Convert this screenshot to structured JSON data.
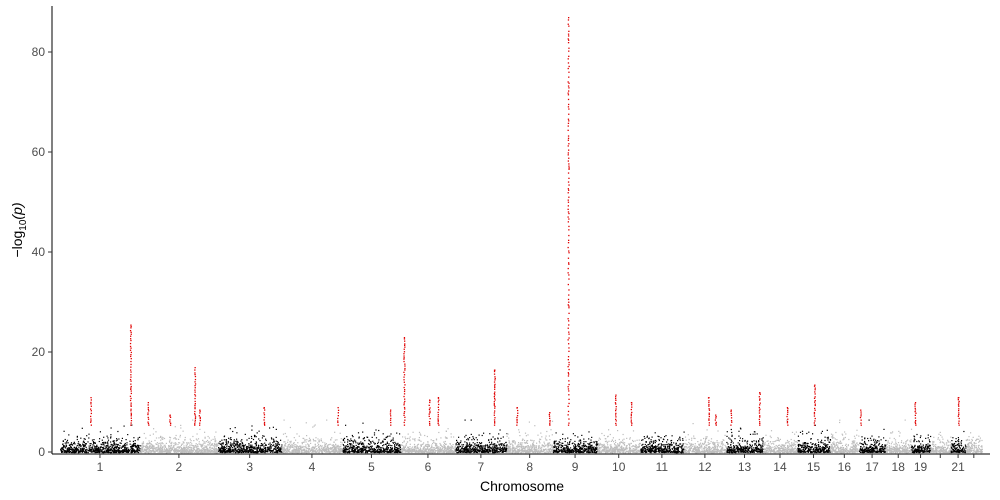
{
  "chart_data": {
    "type": "scatter",
    "subtype": "manhattan",
    "title": "",
    "xlabel": "Chromosome",
    "ylabel_base": "−log",
    "ylabel_sub": "10",
    "ylabel_arg": "(p)",
    "ylim": [
      0,
      88
    ],
    "yticks": [
      0,
      20,
      40,
      60,
      80
    ],
    "grid": false,
    "legend": "none",
    "colors": {
      "odd": "#000000",
      "even": "#bdbdbd",
      "highlight": "#e00000",
      "axis": "#000000"
    },
    "chromosomes": [
      {
        "chr": "1",
        "label": "1",
        "size": 249
      },
      {
        "chr": "2",
        "label": "2",
        "size": 243
      },
      {
        "chr": "3",
        "label": "3",
        "size": 198
      },
      {
        "chr": "4",
        "label": "4",
        "size": 190
      },
      {
        "chr": "5",
        "label": "5",
        "size": 181
      },
      {
        "chr": "6",
        "label": "6",
        "size": 171
      },
      {
        "chr": "7",
        "label": "7",
        "size": 159
      },
      {
        "chr": "8",
        "label": "8",
        "size": 145
      },
      {
        "chr": "9",
        "label": "9",
        "size": 138
      },
      {
        "chr": "10",
        "label": "10",
        "size": 134
      },
      {
        "chr": "11",
        "label": "11",
        "size": 135
      },
      {
        "chr": "12",
        "label": "12",
        "size": 133
      },
      {
        "chr": "13",
        "label": "13",
        "size": 114
      },
      {
        "chr": "14",
        "label": "14",
        "size": 107
      },
      {
        "chr": "15",
        "label": "15",
        "size": 102
      },
      {
        "chr": "16",
        "label": "16",
        "size": 90
      },
      {
        "chr": "17",
        "label": "17",
        "size": 83
      },
      {
        "chr": "18",
        "label": "18",
        "size": 80
      },
      {
        "chr": "19",
        "label": "19",
        "size": 59
      },
      {
        "chr": "20",
        "label": "",
        "size": 64
      },
      {
        "chr": "21",
        "label": "21",
        "size": 47
      },
      {
        "chr": "22",
        "label": "",
        "size": 51
      }
    ],
    "peaks": [
      {
        "chr": "1",
        "pos": 0.38,
        "max": 11
      },
      {
        "chr": "1",
        "pos": 0.88,
        "max": 25.5
      },
      {
        "chr": "2",
        "pos": 0.1,
        "max": 10
      },
      {
        "chr": "2",
        "pos": 0.38,
        "max": 7.5
      },
      {
        "chr": "2",
        "pos": 0.7,
        "max": 17
      },
      {
        "chr": "2",
        "pos": 0.76,
        "max": 8.5
      },
      {
        "chr": "3",
        "pos": 0.72,
        "max": 9
      },
      {
        "chr": "4",
        "pos": 0.92,
        "max": 9
      },
      {
        "chr": "5",
        "pos": 0.82,
        "max": 8.5
      },
      {
        "chr": "6",
        "pos": 0.06,
        "max": 23
      },
      {
        "chr": "6",
        "pos": 0.52,
        "max": 10.5
      },
      {
        "chr": "6",
        "pos": 0.68,
        "max": 11
      },
      {
        "chr": "7",
        "pos": 0.76,
        "max": 16.5
      },
      {
        "chr": "8",
        "pos": 0.22,
        "max": 9
      },
      {
        "chr": "8",
        "pos": 0.92,
        "max": 8
      },
      {
        "chr": "9",
        "pos": 0.34,
        "max": 87
      },
      {
        "chr": "10",
        "pos": 0.42,
        "max": 11.5
      },
      {
        "chr": "10",
        "pos": 0.78,
        "max": 10
      },
      {
        "chr": "12",
        "pos": 0.58,
        "max": 11
      },
      {
        "chr": "12",
        "pos": 0.74,
        "max": 7.5
      },
      {
        "chr": "13",
        "pos": 0.12,
        "max": 8.5
      },
      {
        "chr": "13",
        "pos": 0.9,
        "max": 12
      },
      {
        "chr": "14",
        "pos": 0.7,
        "max": 9
      },
      {
        "chr": "15",
        "pos": 0.52,
        "max": 13.5
      },
      {
        "chr": "17",
        "pos": 0.05,
        "max": 8.5
      },
      {
        "chr": "19",
        "pos": 0.2,
        "max": 10
      },
      {
        "chr": "21",
        "pos": 0.5,
        "max": 11
      }
    ]
  }
}
